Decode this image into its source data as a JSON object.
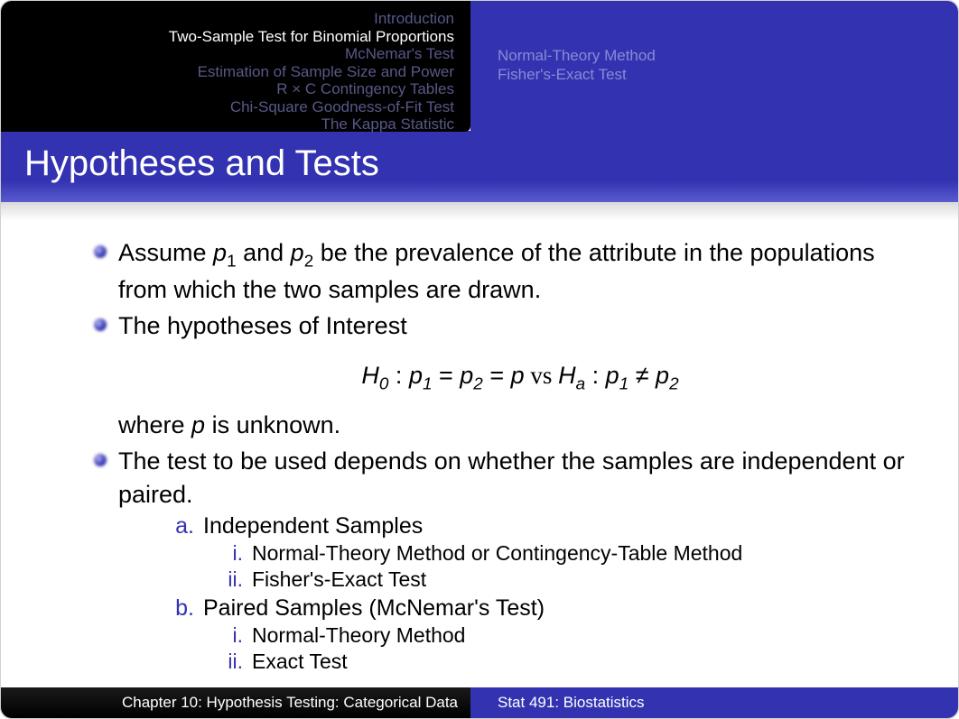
{
  "nav": {
    "left": [
      {
        "label": "Introduction",
        "active": false
      },
      {
        "label": "Two-Sample Test for Binomial Proportions",
        "active": true
      },
      {
        "label": "McNemar's Test",
        "active": false
      },
      {
        "label": "Estimation of Sample Size and Power",
        "active": false
      },
      {
        "label": "R × C Contingency Tables",
        "active": false
      },
      {
        "label": "Chi-Square Goodness-of-Fit Test",
        "active": false
      },
      {
        "label": "The Kappa Statistic",
        "active": false
      }
    ],
    "right": [
      {
        "label": "Normal-Theory Method"
      },
      {
        "label": "Fisher's-Exact Test"
      }
    ]
  },
  "title": "Hypotheses and Tests",
  "bullets": {
    "b1_pre": "Assume ",
    "b1_p1": "p",
    "b1_s1": "1",
    "b1_mid1": " and ",
    "b1_p2": "p",
    "b1_s2": "2",
    "b1_post": " be the prevalence of the attribute in the populations from which the two samples are drawn.",
    "b2": "The hypotheses of Interest",
    "eq": {
      "H0": "H",
      "H0s": "0",
      "colon1": " : ",
      "p1": "p",
      "p1s": "1",
      "eq1": " = ",
      "p2": "p",
      "p2s": "2",
      "eq2": " = ",
      "p": "p",
      "vs": "   vs   ",
      "Ha": "H",
      "Has": "a",
      "colon2": " : ",
      "pa1": "p",
      "pa1s": "1",
      "neq": " ≠ ",
      "pa2": "p",
      "pa2s": "2"
    },
    "b2b_pre": "where ",
    "b2b_p": "p",
    "b2b_post": " is unknown.",
    "b3": "The test to be used depends on whether the samples are independent or paired."
  },
  "alpha": {
    "a_label": "a.",
    "a_text": "Independent Samples",
    "a_i_label": "i.",
    "a_i_text": "Normal-Theory Method or Contingency-Table Method",
    "a_ii_label": "ii.",
    "a_ii_text": "Fisher's-Exact Test",
    "b_label": "b.",
    "b_text": "Paired Samples (McNemar's Test)",
    "b_i_label": "i.",
    "b_i_text": "Normal-Theory Method",
    "b_ii_label": "ii.",
    "b_ii_text": "Exact Test"
  },
  "footer": {
    "left": "Chapter 10: Hypothesis Testing: Categorical Data",
    "right": "Stat 491: Biostatistics"
  },
  "style": {
    "accent": "#3333b2",
    "nav_inactive": "#585888",
    "nav_right_text": "#8a8ad4"
  }
}
